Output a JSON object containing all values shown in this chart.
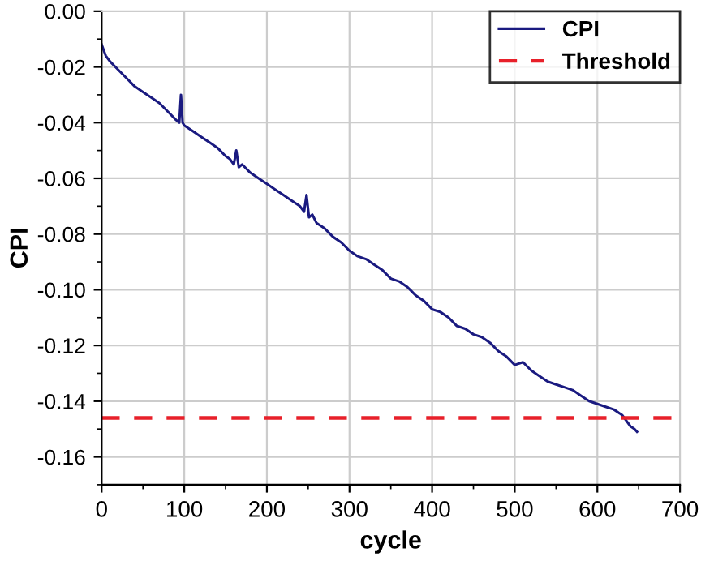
{
  "chart_data": {
    "type": "line",
    "xlabel": "cycle",
    "ylabel": "CPI",
    "x": [
      0,
      5,
      10,
      20,
      30,
      40,
      50,
      60,
      70,
      80,
      90,
      94,
      96,
      98,
      100,
      110,
      120,
      130,
      140,
      150,
      155,
      160,
      163,
      166,
      170,
      180,
      190,
      200,
      210,
      220,
      230,
      240,
      245,
      248,
      251,
      255,
      260,
      270,
      280,
      290,
      300,
      310,
      320,
      330,
      340,
      350,
      360,
      370,
      380,
      390,
      400,
      410,
      420,
      430,
      440,
      450,
      460,
      470,
      480,
      490,
      500,
      510,
      520,
      530,
      540,
      550,
      560,
      570,
      580,
      590,
      600,
      610,
      620,
      630,
      635,
      640,
      645,
      648
    ],
    "series": [
      {
        "name": "CPI",
        "color": "#1a1a80",
        "values": [
          -0.012,
          -0.016,
          -0.018,
          -0.021,
          -0.024,
          -0.027,
          -0.029,
          -0.031,
          -0.033,
          -0.036,
          -0.039,
          -0.04,
          -0.03,
          -0.04,
          -0.041,
          -0.043,
          -0.045,
          -0.047,
          -0.049,
          -0.052,
          -0.053,
          -0.055,
          -0.05,
          -0.056,
          -0.055,
          -0.058,
          -0.06,
          -0.062,
          -0.064,
          -0.066,
          -0.068,
          -0.07,
          -0.072,
          -0.066,
          -0.074,
          -0.073,
          -0.076,
          -0.078,
          -0.081,
          -0.083,
          -0.086,
          -0.088,
          -0.089,
          -0.091,
          -0.093,
          -0.096,
          -0.097,
          -0.099,
          -0.102,
          -0.104,
          -0.107,
          -0.108,
          -0.11,
          -0.113,
          -0.114,
          -0.116,
          -0.117,
          -0.119,
          -0.122,
          -0.124,
          -0.127,
          -0.126,
          -0.129,
          -0.131,
          -0.133,
          -0.134,
          -0.135,
          -0.136,
          -0.138,
          -0.14,
          -0.141,
          -0.142,
          -0.143,
          -0.145,
          -0.147,
          -0.149,
          -0.15,
          -0.151
        ]
      }
    ],
    "ref_lines": [
      {
        "axis": "y",
        "value": -0.146,
        "label": "Threshold",
        "color": "#e8202a",
        "line_style": "dashed"
      }
    ],
    "xlim": [
      0,
      700
    ],
    "xticks": [
      0,
      100,
      200,
      300,
      400,
      500,
      600,
      700
    ],
    "ylim": [
      -0.17,
      0.0
    ],
    "yticks": [
      {
        "value": 0.0,
        "label": "0.00"
      },
      {
        "value": -0.02,
        "label": "-0.02"
      },
      {
        "value": -0.04,
        "label": "-0.04"
      },
      {
        "value": -0.06,
        "label": "-0.06"
      },
      {
        "value": -0.08,
        "label": "-0.08"
      },
      {
        "value": -0.1,
        "label": "-0.10"
      },
      {
        "value": -0.12,
        "label": "-0.12"
      },
      {
        "value": -0.14,
        "label": "-0.14"
      },
      {
        "value": -0.16,
        "label": "-0.16"
      }
    ],
    "grid": true,
    "legend": "top right",
    "marker": "none",
    "line_style": "solid"
  }
}
